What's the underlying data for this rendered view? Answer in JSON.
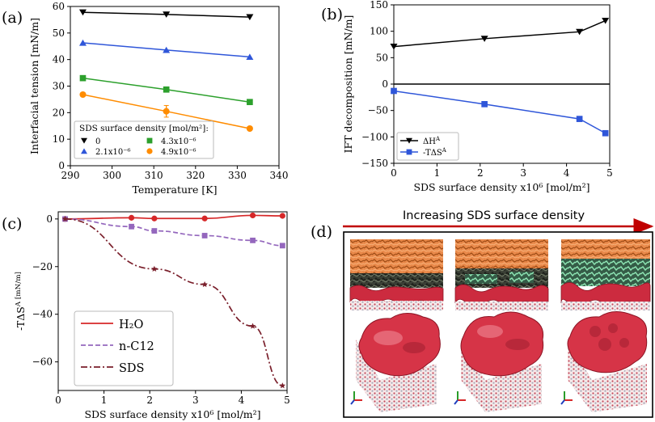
{
  "chart_data": [
    {
      "panel": "(a)",
      "type": "line",
      "title": "",
      "xlabel": "Temperature [K]",
      "ylabel": "Interfacial tension [mN/m]",
      "xlim": [
        290,
        340
      ],
      "ylim": [
        0,
        60
      ],
      "xticks": [
        "290",
        "300",
        "310",
        "320",
        "330",
        "340"
      ],
      "yticks": [
        "0",
        "10",
        "20",
        "30",
        "40",
        "50",
        "60"
      ],
      "legend_title": "SDS surface density [mol/m²]:",
      "legend_position": "lower-left",
      "series": [
        {
          "name": "0",
          "color": "#000000",
          "marker": "triangle-down",
          "x": [
            293,
            313,
            333
          ],
          "y": [
            57.8,
            57.0,
            56.0
          ]
        },
        {
          "name": "2.1x10⁻⁶",
          "color": "#2F56D9",
          "marker": "triangle-up",
          "x": [
            293,
            313,
            333
          ],
          "y": [
            46.3,
            43.6,
            41.0
          ]
        },
        {
          "name": "4.3x10⁻⁶",
          "color": "#2CA02C",
          "marker": "square",
          "x": [
            293,
            313,
            333
          ],
          "y": [
            33.0,
            28.7,
            24.0
          ]
        },
        {
          "name": "4.9x10⁻⁶",
          "color": "#FF8C00",
          "marker": "circle",
          "x": [
            293,
            313,
            333
          ],
          "y": [
            26.8,
            20.5,
            14.0
          ],
          "error": [
            0,
            2.2,
            0
          ]
        }
      ]
    },
    {
      "panel": "(b)",
      "type": "line",
      "title": "",
      "xlabel": "SDS surface density x10⁶ [mol/m²]",
      "ylabel": "IFT decomposition [mN/m]",
      "xlim": [
        0,
        5
      ],
      "ylim": [
        -150,
        150
      ],
      "xticks": [
        "0",
        "1",
        "2",
        "3",
        "4",
        "5"
      ],
      "yticks": [
        "−150",
        "−100",
        "−50",
        "0",
        "50",
        "100",
        "150"
      ],
      "zero_line": true,
      "legend_position": "lower-left",
      "series": [
        {
          "name": "ΔH^A",
          "color": "#000000",
          "marker": "triangle-down",
          "x": [
            0,
            2.1,
            4.3,
            4.9
          ],
          "y": [
            71,
            86,
            99,
            120
          ]
        },
        {
          "name": "-TΔS^A",
          "color": "#2F56D9",
          "marker": "square",
          "x": [
            0,
            2.1,
            4.3,
            4.9
          ],
          "y": [
            -13,
            -38,
            -66,
            -93
          ]
        }
      ]
    },
    {
      "panel": "(c)",
      "type": "line",
      "title": "",
      "xlabel": "SDS surface density x10⁶ [mol/m²]",
      "ylabel": "-TΔS^A [mN/m]",
      "xlim": [
        0,
        5
      ],
      "ylim": [
        -72,
        3
      ],
      "xticks": [
        "0",
        "1",
        "2",
        "3",
        "4",
        "5"
      ],
      "yticks": [
        "−60",
        "−40",
        "−20",
        "0"
      ],
      "legend_position": "lower-left",
      "series": [
        {
          "name": "H₂O",
          "color": "#D62728",
          "style": "solid",
          "marker": "circle",
          "x": [
            0.15,
            1.6,
            2.1,
            3.2,
            4.25,
            4.9
          ],
          "y": [
            0,
            0.5,
            0.2,
            0.2,
            1.5,
            1.3
          ]
        },
        {
          "name": "n-C12",
          "color": "#9467BD",
          "style": "dashed",
          "marker": "square",
          "x": [
            0.15,
            1.6,
            2.1,
            3.2,
            4.25,
            4.9
          ],
          "y": [
            0,
            -3.2,
            -5.0,
            -7.0,
            -9.0,
            -11.2
          ]
        },
        {
          "name": "SDS",
          "color": "#7A1F2B",
          "style": "dashdot",
          "marker": "star",
          "x": [
            0.15,
            2.1,
            3.2,
            4.25,
            4.9
          ],
          "y": [
            0,
            -21.0,
            -27.5,
            -45.0,
            -70.0
          ]
        }
      ]
    }
  ],
  "panel_labels": {
    "a": "(a)",
    "b": "(b)",
    "c": "(c)",
    "d": "(d)"
  },
  "panel_d": {
    "arrow_label": "Increasing SDS surface density",
    "arrow_color": "#C00000",
    "image_description_icon": "molecular-snapshot-icon"
  }
}
